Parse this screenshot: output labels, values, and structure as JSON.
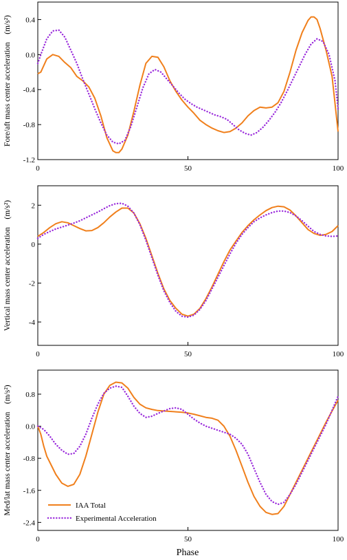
{
  "colors": {
    "iaa": "#F07F1B",
    "exp": "#9A2BDB",
    "axis": "#000000"
  },
  "xlabel": "Phase",
  "chart_data": [
    {
      "type": "line",
      "ylabel": "Fore/aft mass center acceleration　(m/s²)",
      "xlim": [
        0,
        100
      ],
      "ylim": [
        -1.2,
        0.6
      ],
      "xticks": [
        0,
        50,
        100
      ],
      "yticks": [
        -1.2,
        -0.8,
        -0.4,
        0.0,
        0.4
      ],
      "ytick_labels": [
        "-1.2",
        "-0.8",
        "-0.4",
        "0.0",
        "0.4"
      ],
      "series": [
        {
          "name": "IAA Total",
          "x": [
            0,
            1,
            3,
            5,
            7,
            9,
            11,
            13,
            15,
            17,
            19,
            21,
            23,
            25,
            26,
            27,
            28,
            30,
            32,
            34,
            36,
            38,
            40,
            42,
            44,
            46,
            48,
            50,
            52,
            54,
            56,
            58,
            60,
            62,
            64,
            66,
            68,
            70,
            72,
            74,
            76,
            78,
            80,
            82,
            84,
            86,
            88,
            90,
            91,
            92,
            93,
            94,
            96,
            98,
            100
          ],
          "y": [
            -0.22,
            -0.2,
            -0.05,
            0.0,
            -0.02,
            -0.09,
            -0.15,
            -0.25,
            -0.3,
            -0.37,
            -0.5,
            -0.7,
            -0.95,
            -1.1,
            -1.12,
            -1.12,
            -1.08,
            -0.92,
            -0.65,
            -0.35,
            -0.1,
            -0.02,
            -0.03,
            -0.14,
            -0.3,
            -0.42,
            -0.52,
            -0.6,
            -0.67,
            -0.75,
            -0.8,
            -0.84,
            -0.87,
            -0.89,
            -0.88,
            -0.84,
            -0.78,
            -0.7,
            -0.64,
            -0.6,
            -0.61,
            -0.6,
            -0.55,
            -0.42,
            -0.2,
            0.05,
            0.25,
            0.39,
            0.43,
            0.43,
            0.4,
            0.3,
            0.05,
            -0.25,
            -0.88
          ]
        },
        {
          "name": "Experimental Acceleration",
          "x": [
            0,
            1,
            3,
            5,
            7,
            9,
            11,
            13,
            15,
            17,
            19,
            21,
            23,
            25,
            27,
            29,
            31,
            33,
            35,
            37,
            39,
            41,
            43,
            45,
            47,
            49,
            51,
            53,
            55,
            57,
            59,
            61,
            63,
            65,
            67,
            69,
            71,
            73,
            75,
            77,
            79,
            81,
            83,
            85,
            87,
            89,
            91,
            93,
            95,
            97,
            99,
            100
          ],
          "y": [
            -0.1,
            0.0,
            0.18,
            0.27,
            0.28,
            0.2,
            0.05,
            -0.1,
            -0.28,
            -0.45,
            -0.62,
            -0.78,
            -0.92,
            -1.0,
            -1.02,
            -0.98,
            -0.82,
            -0.6,
            -0.38,
            -0.22,
            -0.17,
            -0.2,
            -0.28,
            -0.36,
            -0.44,
            -0.51,
            -0.56,
            -0.6,
            -0.63,
            -0.66,
            -0.69,
            -0.71,
            -0.74,
            -0.8,
            -0.86,
            -0.9,
            -0.92,
            -0.89,
            -0.83,
            -0.75,
            -0.66,
            -0.55,
            -0.42,
            -0.28,
            -0.14,
            0.0,
            0.12,
            0.18,
            0.15,
            0.0,
            -0.3,
            -0.62
          ]
        }
      ]
    },
    {
      "type": "line",
      "ylabel": "Vertical mass center acceleration　(m/s²)",
      "xlim": [
        0,
        100
      ],
      "ylim": [
        -5.2,
        3.0
      ],
      "xticks": [
        0,
        50,
        100
      ],
      "yticks": [
        -4,
        -2,
        0,
        2
      ],
      "ytick_labels": [
        "-4",
        "-2",
        "0",
        "2"
      ],
      "series": [
        {
          "name": "IAA Total",
          "x": [
            0,
            2,
            4,
            6,
            8,
            10,
            12,
            14,
            16,
            18,
            20,
            22,
            24,
            26,
            28,
            30,
            32,
            34,
            36,
            38,
            40,
            42,
            44,
            46,
            48,
            50,
            52,
            54,
            56,
            58,
            60,
            62,
            64,
            66,
            68,
            70,
            72,
            74,
            76,
            78,
            80,
            82,
            84,
            86,
            88,
            90,
            92,
            94,
            96,
            98,
            100
          ],
          "y": [
            0.4,
            0.6,
            0.85,
            1.05,
            1.15,
            1.1,
            0.95,
            0.8,
            0.68,
            0.7,
            0.85,
            1.1,
            1.4,
            1.65,
            1.85,
            1.85,
            1.6,
            1.05,
            0.3,
            -0.6,
            -1.5,
            -2.3,
            -2.9,
            -3.3,
            -3.6,
            -3.7,
            -3.6,
            -3.3,
            -2.8,
            -2.2,
            -1.55,
            -0.9,
            -0.3,
            0.15,
            0.6,
            0.95,
            1.25,
            1.5,
            1.72,
            1.88,
            1.95,
            1.92,
            1.75,
            1.45,
            1.1,
            0.75,
            0.55,
            0.45,
            0.5,
            0.65,
            0.95
          ]
        },
        {
          "name": "Experimental Acceleration",
          "x": [
            0,
            2,
            4,
            6,
            8,
            10,
            12,
            14,
            16,
            18,
            20,
            22,
            24,
            26,
            28,
            30,
            32,
            34,
            36,
            38,
            40,
            42,
            44,
            46,
            48,
            50,
            52,
            54,
            56,
            58,
            60,
            62,
            64,
            66,
            68,
            70,
            72,
            74,
            76,
            78,
            80,
            82,
            84,
            86,
            88,
            90,
            92,
            94,
            96,
            98,
            100
          ],
          "y": [
            0.3,
            0.5,
            0.65,
            0.78,
            0.88,
            0.98,
            1.08,
            1.2,
            1.35,
            1.5,
            1.65,
            1.82,
            1.98,
            2.08,
            2.1,
            1.95,
            1.6,
            1.0,
            0.2,
            -0.7,
            -1.6,
            -2.4,
            -3.0,
            -3.45,
            -3.7,
            -3.75,
            -3.65,
            -3.35,
            -2.9,
            -2.3,
            -1.7,
            -1.1,
            -0.5,
            0.05,
            0.5,
            0.85,
            1.15,
            1.35,
            1.5,
            1.62,
            1.7,
            1.7,
            1.62,
            1.45,
            1.2,
            0.92,
            0.65,
            0.5,
            0.42,
            0.4,
            0.42
          ]
        }
      ]
    },
    {
      "type": "line",
      "ylabel": "Med/lat mass center acceleration　(m/s²)",
      "xlim": [
        0,
        100
      ],
      "ylim": [
        -2.6,
        1.4
      ],
      "xticks": [
        0,
        50,
        100
      ],
      "yticks": [
        -2.4,
        -1.6,
        -0.8,
        0.0,
        0.8
      ],
      "ytick_labels": [
        "-2.4",
        "-1.6",
        "-0.8",
        "0.0",
        "0.8"
      ],
      "series": [
        {
          "name": "IAA Total",
          "x": [
            0,
            1,
            2,
            3,
            4,
            6,
            8,
            10,
            12,
            14,
            16,
            18,
            20,
            22,
            24,
            26,
            28,
            30,
            32,
            34,
            36,
            38,
            40,
            42,
            44,
            46,
            48,
            50,
            52,
            54,
            56,
            58,
            60,
            62,
            64,
            66,
            68,
            70,
            72,
            74,
            76,
            78,
            80,
            82,
            84,
            86,
            88,
            90,
            92,
            94,
            96,
            98,
            100
          ],
          "y": [
            0.0,
            -0.2,
            -0.5,
            -0.75,
            -0.9,
            -1.2,
            -1.42,
            -1.5,
            -1.45,
            -1.2,
            -0.75,
            -0.2,
            0.35,
            0.8,
            1.02,
            1.1,
            1.08,
            0.95,
            0.72,
            0.55,
            0.46,
            0.42,
            0.39,
            0.38,
            0.37,
            0.36,
            0.35,
            0.33,
            0.3,
            0.26,
            0.22,
            0.2,
            0.15,
            0.0,
            -0.25,
            -0.6,
            -1.0,
            -1.4,
            -1.75,
            -2.0,
            -2.15,
            -2.2,
            -2.18,
            -2.0,
            -1.7,
            -1.4,
            -1.1,
            -0.8,
            -0.5,
            -0.2,
            0.1,
            0.38,
            0.65
          ]
        },
        {
          "name": "Experimental Acceleration",
          "x": [
            0,
            2,
            4,
            6,
            8,
            10,
            12,
            14,
            16,
            18,
            20,
            22,
            24,
            26,
            28,
            30,
            32,
            34,
            36,
            38,
            40,
            42,
            44,
            46,
            48,
            50,
            52,
            54,
            56,
            58,
            60,
            62,
            64,
            66,
            68,
            70,
            72,
            74,
            76,
            78,
            80,
            82,
            84,
            86,
            88,
            90,
            92,
            94,
            96,
            98,
            100
          ],
          "y": [
            0.0,
            -0.08,
            -0.25,
            -0.45,
            -0.6,
            -0.7,
            -0.68,
            -0.5,
            -0.2,
            0.2,
            0.55,
            0.82,
            0.95,
            1.0,
            0.97,
            0.75,
            0.5,
            0.32,
            0.22,
            0.25,
            0.32,
            0.38,
            0.44,
            0.46,
            0.42,
            0.3,
            0.18,
            0.08,
            0.0,
            -0.05,
            -0.1,
            -0.15,
            -0.2,
            -0.3,
            -0.45,
            -0.7,
            -1.05,
            -1.4,
            -1.7,
            -1.88,
            -1.95,
            -1.9,
            -1.7,
            -1.45,
            -1.15,
            -0.85,
            -0.55,
            -0.25,
            0.05,
            0.4,
            0.75
          ]
        }
      ]
    }
  ],
  "legend": [
    {
      "label": "IAA Total",
      "style": "solid",
      "color": "#F07F1B"
    },
    {
      "label": "Experimental Acceleration",
      "style": "dotted",
      "color": "#9A2BDB"
    }
  ]
}
